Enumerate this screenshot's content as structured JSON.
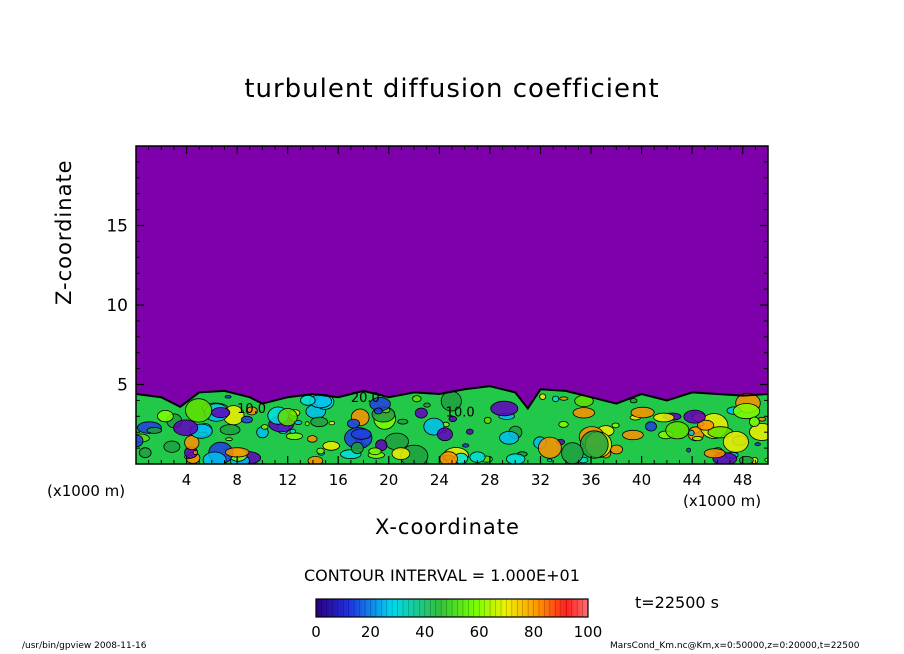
{
  "chart_data": {
    "type": "heatmap",
    "title": "turbulent diffusion coefficient",
    "xlabel": "X-coordinate",
    "ylabel": "Z-coordinate",
    "x_unit": "(x1000 m)",
    "xlim": [
      0,
      50
    ],
    "ylim": [
      0,
      20
    ],
    "x_ticks": [
      4,
      8,
      12,
      16,
      20,
      24,
      28,
      32,
      36,
      40,
      44,
      48
    ],
    "y_ticks": [
      5,
      10,
      15
    ],
    "contour_interval_text": "CONTOUR INTERVAL = 1.000E+01",
    "colorbar": {
      "min": 0,
      "max": 100,
      "ticks": [
        0,
        20,
        40,
        60,
        80,
        100
      ]
    },
    "inline_contour_labels": [
      "20.0",
      "10.0",
      "10.0"
    ],
    "time_label": "t=22500 s",
    "boundary_layer_top_km": [
      [
        0,
        4.4
      ],
      [
        2,
        4.2
      ],
      [
        3.5,
        3.6
      ],
      [
        5,
        4.5
      ],
      [
        7,
        4.6
      ],
      [
        9,
        4.2
      ],
      [
        10,
        3.8
      ],
      [
        12,
        4.2
      ],
      [
        14,
        4.4
      ],
      [
        16,
        4.2
      ],
      [
        18,
        4.6
      ],
      [
        20,
        4.2
      ],
      [
        22,
        4.5
      ],
      [
        24,
        4.4
      ],
      [
        26,
        4.7
      ],
      [
        28,
        4.9
      ],
      [
        30,
        4.5
      ],
      [
        31,
        3.5
      ],
      [
        32,
        4.7
      ],
      [
        34,
        4.6
      ],
      [
        36,
        4.2
      ],
      [
        38,
        3.8
      ],
      [
        40,
        4.4
      ],
      [
        42,
        4.0
      ],
      [
        44,
        4.5
      ],
      [
        46,
        4.4
      ],
      [
        48,
        4.3
      ],
      [
        50,
        4.4
      ]
    ],
    "colors": {
      "background_field": "#7e00aa",
      "contour_line": "#000000"
    }
  },
  "footer": {
    "left": "/usr/bin/gpview   2008-11-16",
    "right": "MarsCond_Km.nc@Km,x=0:50000,z=0:20000,t=22500"
  }
}
